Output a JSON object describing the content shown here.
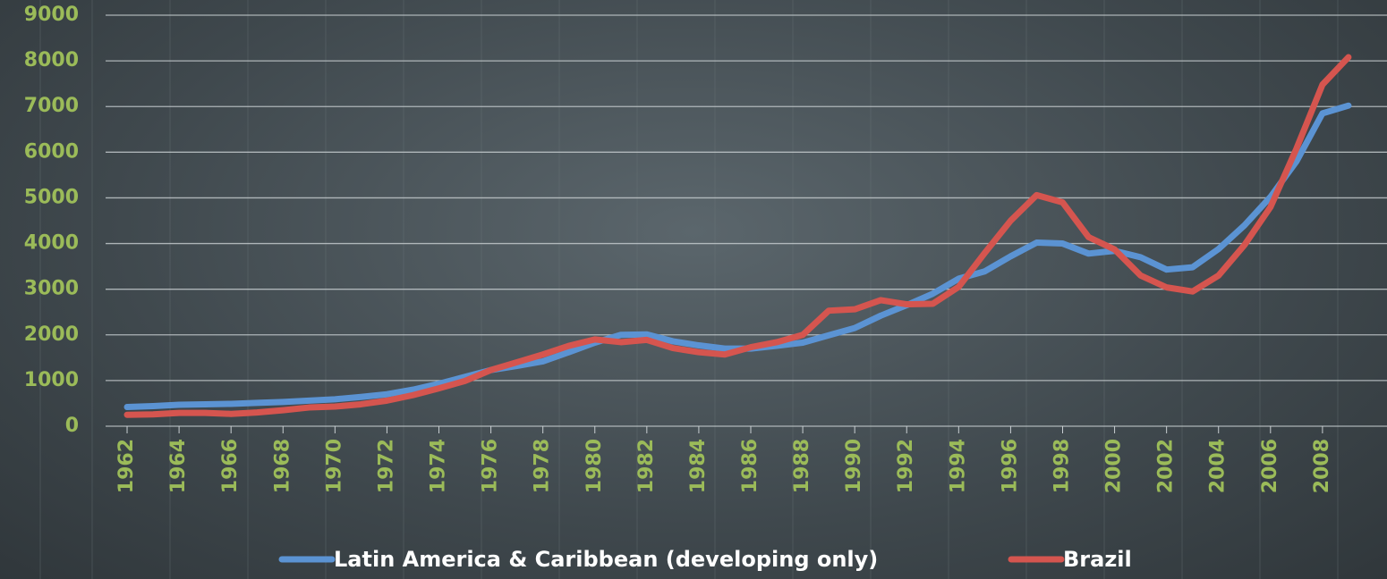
{
  "chart_data": {
    "type": "line",
    "x": [
      1962,
      1963,
      1964,
      1965,
      1966,
      1967,
      1968,
      1969,
      1970,
      1971,
      1972,
      1973,
      1974,
      1975,
      1976,
      1977,
      1978,
      1979,
      1980,
      1981,
      1982,
      1983,
      1984,
      1985,
      1986,
      1987,
      1988,
      1989,
      1990,
      1991,
      1992,
      1993,
      1994,
      1995,
      1996,
      1997,
      1998,
      1999,
      2000,
      2001,
      2002,
      2003,
      2004,
      2005,
      2006,
      2007,
      2008,
      2009
    ],
    "xlim": [
      1961.5,
      2010.5
    ],
    "xticks": [
      1962,
      1964,
      1966,
      1968,
      1970,
      1972,
      1974,
      1976,
      1978,
      1980,
      1982,
      1984,
      1986,
      1988,
      1990,
      1992,
      1994,
      1996,
      1998,
      2000,
      2002,
      2004,
      2006,
      2008
    ],
    "ylim": [
      0,
      9000
    ],
    "yticks": [
      0,
      1000,
      2000,
      3000,
      4000,
      5000,
      6000,
      7000,
      8000,
      9000
    ],
    "grid": true,
    "legend": "bottom",
    "series": [
      {
        "name": "Latin America & Caribbean (developing only)",
        "color": "#5b93d3",
        "values": [
          420,
          440,
          470,
          480,
          490,
          510,
          530,
          560,
          590,
          640,
          700,
          800,
          930,
          1080,
          1230,
          1320,
          1420,
          1620,
          1830,
          2000,
          2010,
          1860,
          1770,
          1700,
          1700,
          1760,
          1830,
          1990,
          2150,
          2420,
          2650,
          2900,
          3230,
          3390,
          3720,
          4020,
          4000,
          3780,
          3840,
          3700,
          3430,
          3480,
          3880,
          4400,
          5020,
          5800,
          6850,
          7020
        ]
      },
      {
        "name": "Brazil",
        "color": "#d5554f",
        "values": [
          250,
          260,
          290,
          290,
          270,
          300,
          350,
          410,
          430,
          480,
          560,
          680,
          830,
          990,
          1230,
          1400,
          1570,
          1760,
          1900,
          1840,
          1890,
          1710,
          1620,
          1570,
          1730,
          1840,
          2000,
          2530,
          2560,
          2760,
          2670,
          2680,
          3050,
          3790,
          4500,
          5060,
          4900,
          4140,
          3870,
          3300,
          3040,
          2950,
          3300,
          3970,
          4800,
          6080,
          7480,
          8080
        ]
      }
    ]
  }
}
